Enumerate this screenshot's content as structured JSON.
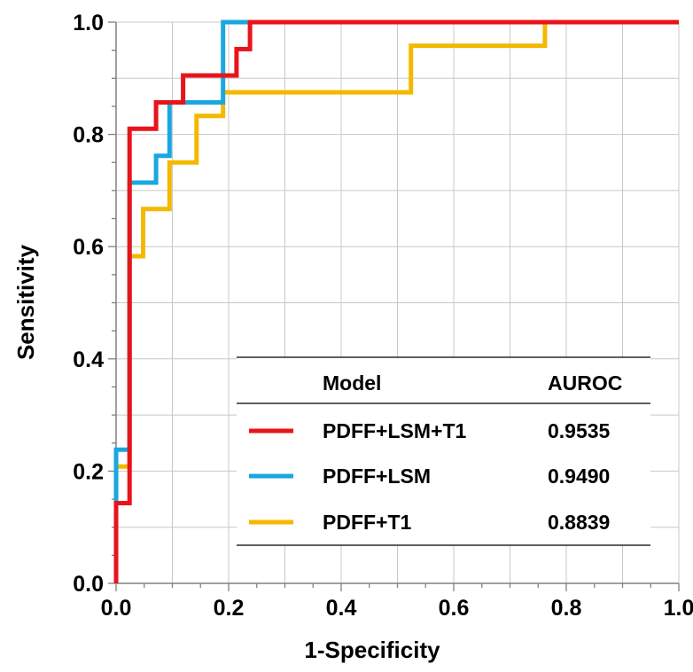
{
  "chart_data": {
    "type": "line",
    "subtype": "roc-step",
    "xlabel": "1-Specificity",
    "ylabel": "Sensitivity",
    "xlim": [
      0,
      1
    ],
    "ylim": [
      0,
      1
    ],
    "x_ticks": [
      "0.0",
      "0.2",
      "0.4",
      "0.6",
      "0.8",
      "1.0"
    ],
    "y_ticks": [
      "0.0",
      "0.2",
      "0.4",
      "0.6",
      "0.8",
      "1.0"
    ],
    "grid": true,
    "legend": {
      "placement": "bottom-right",
      "header_model": "Model",
      "header_auroc": "AUROC"
    },
    "series": [
      {
        "name": "PDFF+LSM+T1",
        "auroc": "0.9535",
        "color": "#e8141b",
        "points": [
          [
            0,
            0
          ],
          [
            0,
            0.143
          ],
          [
            0.024,
            0.143
          ],
          [
            0.024,
            0.81
          ],
          [
            0.071,
            0.81
          ],
          [
            0.071,
            0.857
          ],
          [
            0.119,
            0.857
          ],
          [
            0.119,
            0.905
          ],
          [
            0.214,
            0.905
          ],
          [
            0.214,
            0.952
          ],
          [
            0.238,
            0.952
          ],
          [
            0.238,
            1.0
          ],
          [
            1.0,
            1.0
          ]
        ]
      },
      {
        "name": "PDFF+LSM",
        "auroc": "0.9490",
        "color": "#1aa7e0",
        "points": [
          [
            0,
            0
          ],
          [
            0,
            0.238
          ],
          [
            0.024,
            0.238
          ],
          [
            0.024,
            0.714
          ],
          [
            0.071,
            0.714
          ],
          [
            0.071,
            0.762
          ],
          [
            0.095,
            0.762
          ],
          [
            0.095,
            0.857
          ],
          [
            0.19,
            0.857
          ],
          [
            0.19,
            1.0
          ],
          [
            1.0,
            1.0
          ]
        ]
      },
      {
        "name": "PDFF+T1",
        "auroc": "0.8839",
        "color": "#f5b800",
        "points": [
          [
            0,
            0
          ],
          [
            0,
            0.208
          ],
          [
            0.024,
            0.208
          ],
          [
            0.024,
            0.583
          ],
          [
            0.048,
            0.583
          ],
          [
            0.048,
            0.667
          ],
          [
            0.095,
            0.667
          ],
          [
            0.095,
            0.75
          ],
          [
            0.143,
            0.75
          ],
          [
            0.143,
            0.833
          ],
          [
            0.19,
            0.833
          ],
          [
            0.19,
            0.875
          ],
          [
            0.524,
            0.875
          ],
          [
            0.524,
            0.958
          ],
          [
            0.762,
            0.958
          ],
          [
            0.762,
            1.0
          ],
          [
            1.0,
            1.0
          ]
        ]
      }
    ]
  }
}
